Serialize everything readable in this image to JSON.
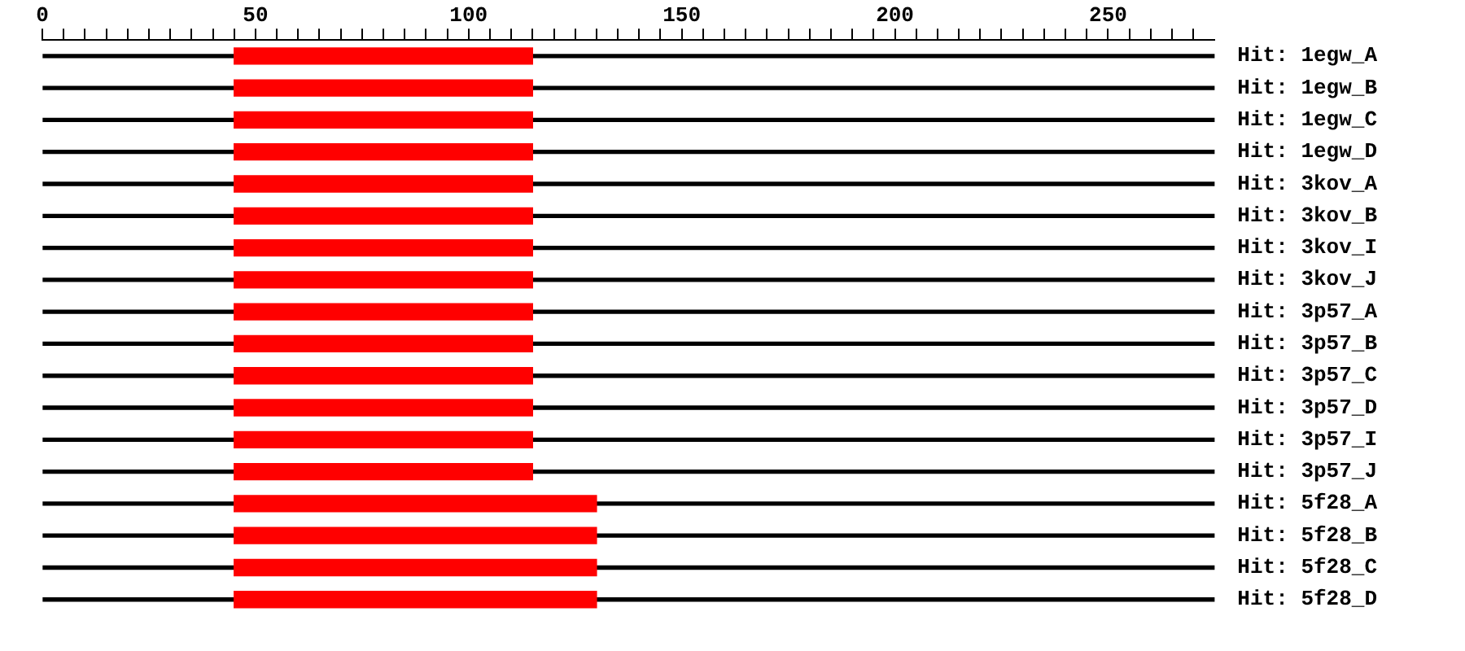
{
  "chart_data": {
    "type": "bar",
    "orientation": "horizontal",
    "categories": [
      "Hit: 1egw_A",
      "Hit: 1egw_B",
      "Hit: 1egw_C",
      "Hit: 1egw_D",
      "Hit: 3kov_A",
      "Hit: 3kov_B",
      "Hit: 3kov_I",
      "Hit: 3kov_J",
      "Hit: 3p57_A",
      "Hit: 3p57_B",
      "Hit: 3p57_C",
      "Hit: 3p57_D",
      "Hit: 3p57_I",
      "Hit: 3p57_J",
      "Hit: 5f28_A",
      "Hit: 5f28_B",
      "Hit: 5f28_C",
      "Hit: 5f28_D"
    ],
    "series": [
      {
        "color": "#000000",
        "base": [
          0,
          0,
          0,
          0,
          0,
          0,
          0,
          0,
          0,
          0,
          0,
          0,
          0,
          0,
          0,
          0,
          0,
          0
        ],
        "values": [
          275,
          275,
          275,
          275,
          275,
          275,
          275,
          275,
          275,
          275,
          275,
          275,
          275,
          275,
          275,
          275,
          275,
          275
        ]
      },
      {
        "color": "#ff0000",
        "base": [
          45,
          45,
          45,
          45,
          45,
          45,
          45,
          45,
          45,
          45,
          45,
          45,
          45,
          45,
          45,
          45,
          45,
          45
        ],
        "values": [
          70,
          70,
          70,
          70,
          70,
          70,
          70,
          70,
          70,
          70,
          70,
          70,
          70,
          70,
          85,
          85,
          85,
          85
        ]
      }
    ],
    "xlim": [
      0,
      275
    ],
    "xticks": [
      0,
      {
        "value": 5,
        "label": null
      },
      {
        "value": 10,
        "label": null
      },
      {
        "value": 15,
        "label": null
      },
      {
        "value": 20,
        "label": null
      },
      {
        "value": 25,
        "label": null
      },
      {
        "value": 30,
        "label": null
      },
      {
        "value": 35,
        "label": null
      },
      {
        "value": 40,
        "label": null
      },
      {
        "value": 45,
        "label": null
      },
      50,
      {
        "value": 55,
        "label": null
      },
      {
        "value": 60,
        "label": null
      },
      {
        "value": 65,
        "label": null
      },
      {
        "value": 70,
        "label": null
      },
      {
        "value": 75,
        "label": null
      },
      {
        "value": 80,
        "label": null
      },
      {
        "value": 85,
        "label": null
      },
      {
        "value": 90,
        "label": null
      },
      {
        "value": 95,
        "label": null
      },
      100,
      {
        "value": 105,
        "label": null
      },
      {
        "value": 110,
        "label": null
      },
      {
        "value": 115,
        "label": null
      },
      {
        "value": 120,
        "label": null
      },
      {
        "value": 125,
        "label": null
      },
      {
        "value": 130,
        "label": null
      },
      {
        "value": 135,
        "label": null
      },
      {
        "value": 140,
        "label": null
      },
      {
        "value": 145,
        "label": null
      },
      150,
      {
        "value": 155,
        "label": null
      },
      {
        "value": 160,
        "label": null
      },
      {
        "value": 165,
        "label": null
      },
      {
        "value": 170,
        "label": null
      },
      {
        "value": 175,
        "label": null
      },
      {
        "value": 180,
        "label": null
      },
      {
        "value": 185,
        "label": null
      },
      {
        "value": 190,
        "label": null
      },
      {
        "value": 195,
        "label": null
      },
      200,
      {
        "value": 205,
        "label": null
      },
      {
        "value": 210,
        "label": null
      },
      {
        "value": 215,
        "label": null
      },
      {
        "value": 220,
        "label": null
      },
      {
        "value": 225,
        "label": null
      },
      {
        "value": 230,
        "label": null
      },
      {
        "value": 235,
        "label": null
      },
      {
        "value": 240,
        "label": null
      },
      {
        "value": 245,
        "label": null
      },
      250,
      {
        "value": 255,
        "label": null
      },
      {
        "value": 260,
        "label": null
      },
      {
        "value": 265,
        "label": null
      },
      {
        "value": 270,
        "label": null
      }
    ],
    "grid": false,
    "legend": false
  }
}
